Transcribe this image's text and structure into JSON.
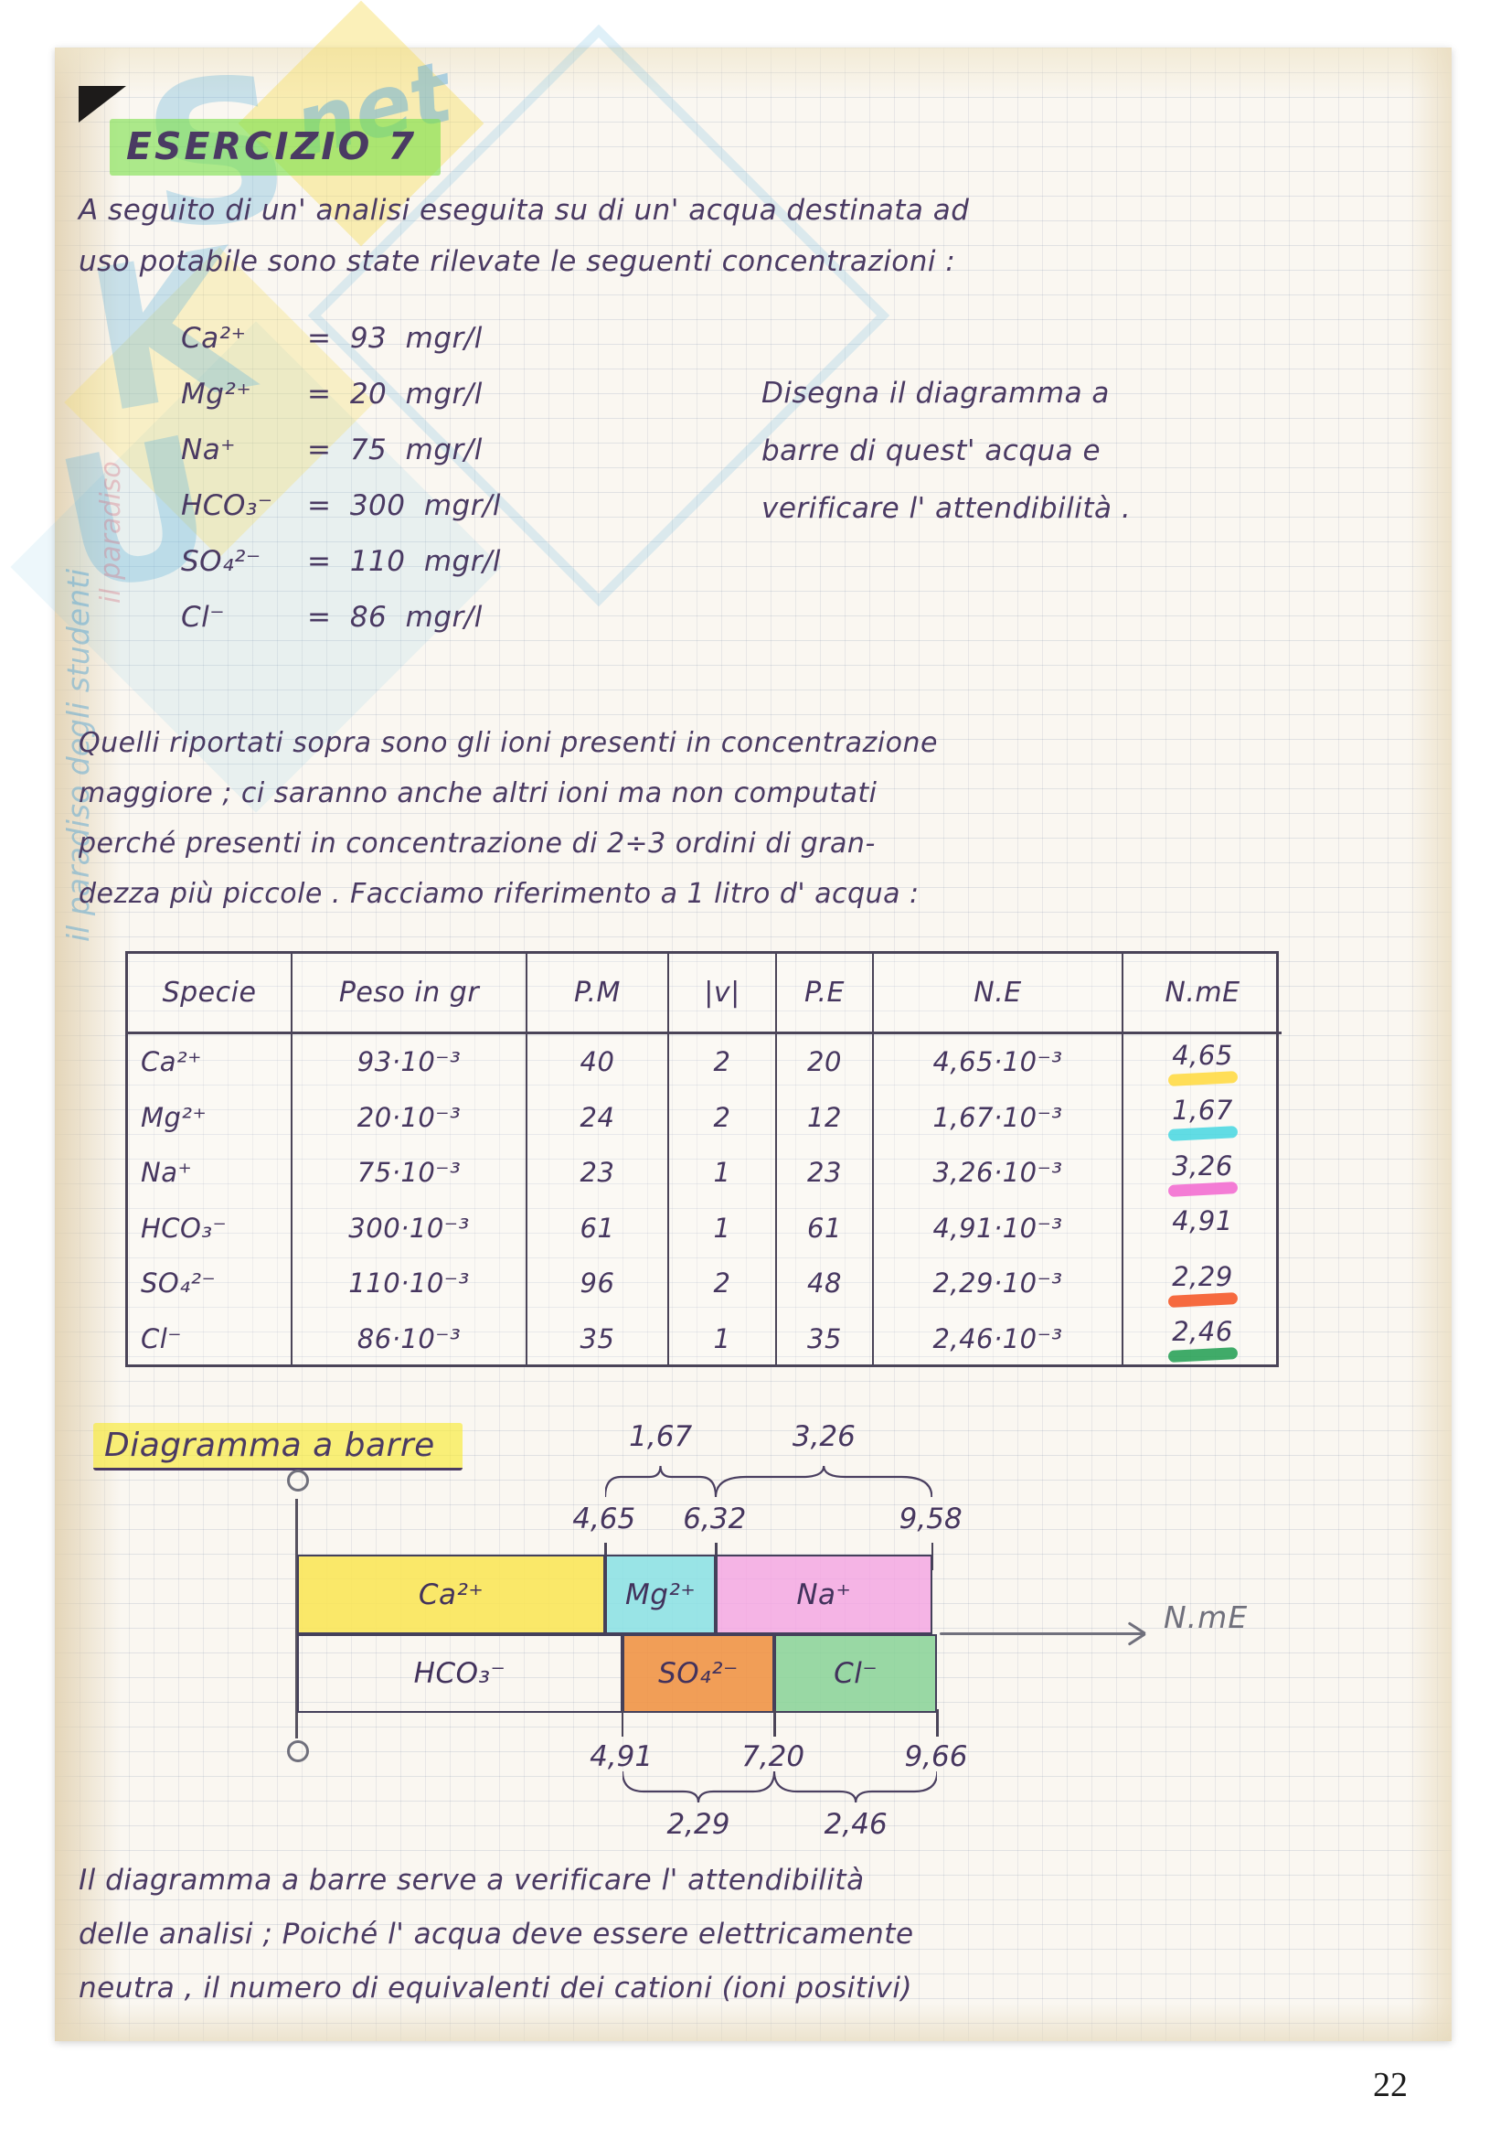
{
  "theme": {
    "green_highlight": "rgba(124,224,74,0.62)",
    "yellow_highlight": "rgba(248,234,60,0.68)",
    "ink": "#4a3a63"
  },
  "watermark": {
    "letters": [
      "S",
      "K",
      "U"
    ],
    "suffix": "net",
    "tagline": "il paradiso degli studenti",
    "side_text": "il paradiso"
  },
  "title": "ESERCIZIO 7",
  "intro": {
    "line1": "A seguito di un' analisi eseguita su di un' acqua destinata ad",
    "line2": "uso potabile sono state rilevate le seguenti concentrazioni :"
  },
  "concentrations": [
    {
      "species": "Ca²⁺",
      "value": "= 93 mgr/l"
    },
    {
      "species": "Mg²⁺",
      "value": "= 20 mgr/l"
    },
    {
      "species": "Na⁺",
      "value": "= 75 mgr/l"
    },
    {
      "species": "HCO₃⁻",
      "value": "= 300 mgr/l"
    },
    {
      "species": "SO₄²⁻",
      "value": "= 110 mgr/l"
    },
    {
      "species": "Cl⁻",
      "value": "= 86 mgr/l"
    }
  ],
  "side_note": {
    "line1": "Disegna il diagramma a",
    "line2": "barre di quest' acqua e",
    "line3": "verificare l' attendibilità ."
  },
  "paragraph": {
    "line1": "Quelli riportati sopra sono gli ioni presenti in concentrazione",
    "line2": "maggiore ; ci saranno anche altri ioni ma non computati",
    "line3": "perché presenti in concentrazione di 2÷3 ordini di gran-",
    "line4": "dezza più piccole .   Facciamo riferimento a 1 litro d' acqua :"
  },
  "table": {
    "headers": [
      "Specie",
      "Peso in gr",
      "P.M",
      "|v|",
      "P.E",
      "N.E",
      "N.mE"
    ],
    "rows": [
      {
        "specie": "Ca²⁺",
        "peso": "93·10⁻³",
        "pm": "40",
        "v": "2",
        "pe": "20",
        "ne": "4,65·10⁻³",
        "nme": "4,65",
        "highlight": "#ffd93b"
      },
      {
        "specie": "Mg²⁺",
        "peso": "20·10⁻³",
        "pm": "24",
        "v": "2",
        "pe": "12",
        "ne": "1,67·10⁻³",
        "nme": "1,67",
        "highlight": "#45d7e0"
      },
      {
        "specie": "Na⁺",
        "peso": "75·10⁻³",
        "pm": "23",
        "v": "1",
        "pe": "23",
        "ne": "3,26·10⁻³",
        "nme": "3,26",
        "highlight": "#f266cf"
      },
      {
        "specie": "HCO₃⁻",
        "peso": "300·10⁻³",
        "pm": "61",
        "v": "1",
        "pe": "61",
        "ne": "4,91·10⁻³",
        "nme": "4,91",
        "highlight": ""
      },
      {
        "specie": "SO₄²⁻",
        "peso": "110·10⁻³",
        "pm": "96",
        "v": "2",
        "pe": "48",
        "ne": "2,29·10⁻³",
        "nme": "2,29",
        "highlight": "#f4511e"
      },
      {
        "specie": "Cl⁻",
        "peso": "86·10⁻³",
        "pm": "35",
        "v": "1",
        "pe": "35",
        "ne": "2,46·10⁻³",
        "nme": "2,46",
        "highlight": "#1e9e50"
      }
    ]
  },
  "diagram": {
    "type": "bar",
    "title": "Diagramma a barre",
    "axis_label": "N.mE",
    "cations": [
      {
        "label": "Ca²⁺",
        "from": 0,
        "to": 4.65,
        "color": "rgba(250,230,90,0.9)"
      },
      {
        "label": "Mg²⁺",
        "from": 4.65,
        "to": 6.32,
        "color": "rgba(135,224,228,0.85)"
      },
      {
        "label": "Na⁺",
        "from": 6.32,
        "to": 9.58,
        "color": "rgba(244,162,226,0.8)"
      }
    ],
    "anions": [
      {
        "label": "HCO₃⁻",
        "from": 0,
        "to": 4.91,
        "color": "transparent"
      },
      {
        "label": "SO₄²⁻",
        "from": 4.91,
        "to": 7.2,
        "color": "rgba(240,148,70,0.9)"
      },
      {
        "label": "Cl⁻",
        "from": 7.2,
        "to": 9.66,
        "color": "rgba(135,210,150,0.85)"
      }
    ],
    "top_ticks": [
      {
        "v": 4.65,
        "label": "4,65"
      },
      {
        "v": 6.32,
        "label": "6,32"
      },
      {
        "v": 9.58,
        "label": "9,58"
      }
    ],
    "bottom_ticks": [
      {
        "v": 4.91,
        "label": "4,91"
      },
      {
        "v": 7.2,
        "label": "7,20"
      },
      {
        "v": 9.66,
        "label": "9,66"
      }
    ],
    "top_braces": [
      {
        "from": 4.65,
        "to": 6.32,
        "label": "1,67"
      },
      {
        "from": 6.32,
        "to": 9.58,
        "label": "3,26"
      }
    ],
    "bottom_braces": [
      {
        "from": 4.91,
        "to": 7.2,
        "label": "2,29"
      },
      {
        "from": 7.2,
        "to": 9.66,
        "label": "2,46"
      }
    ]
  },
  "footer": {
    "line1": "Il diagramma a barre serve a verificare l' attendibilità",
    "line2": "delle analisi ; Poiché l' acqua deve essere elettricamente",
    "line3": "neutra , il numero di equivalenti dei cationi (ioni positivi)"
  },
  "page": {
    "number": "22"
  }
}
